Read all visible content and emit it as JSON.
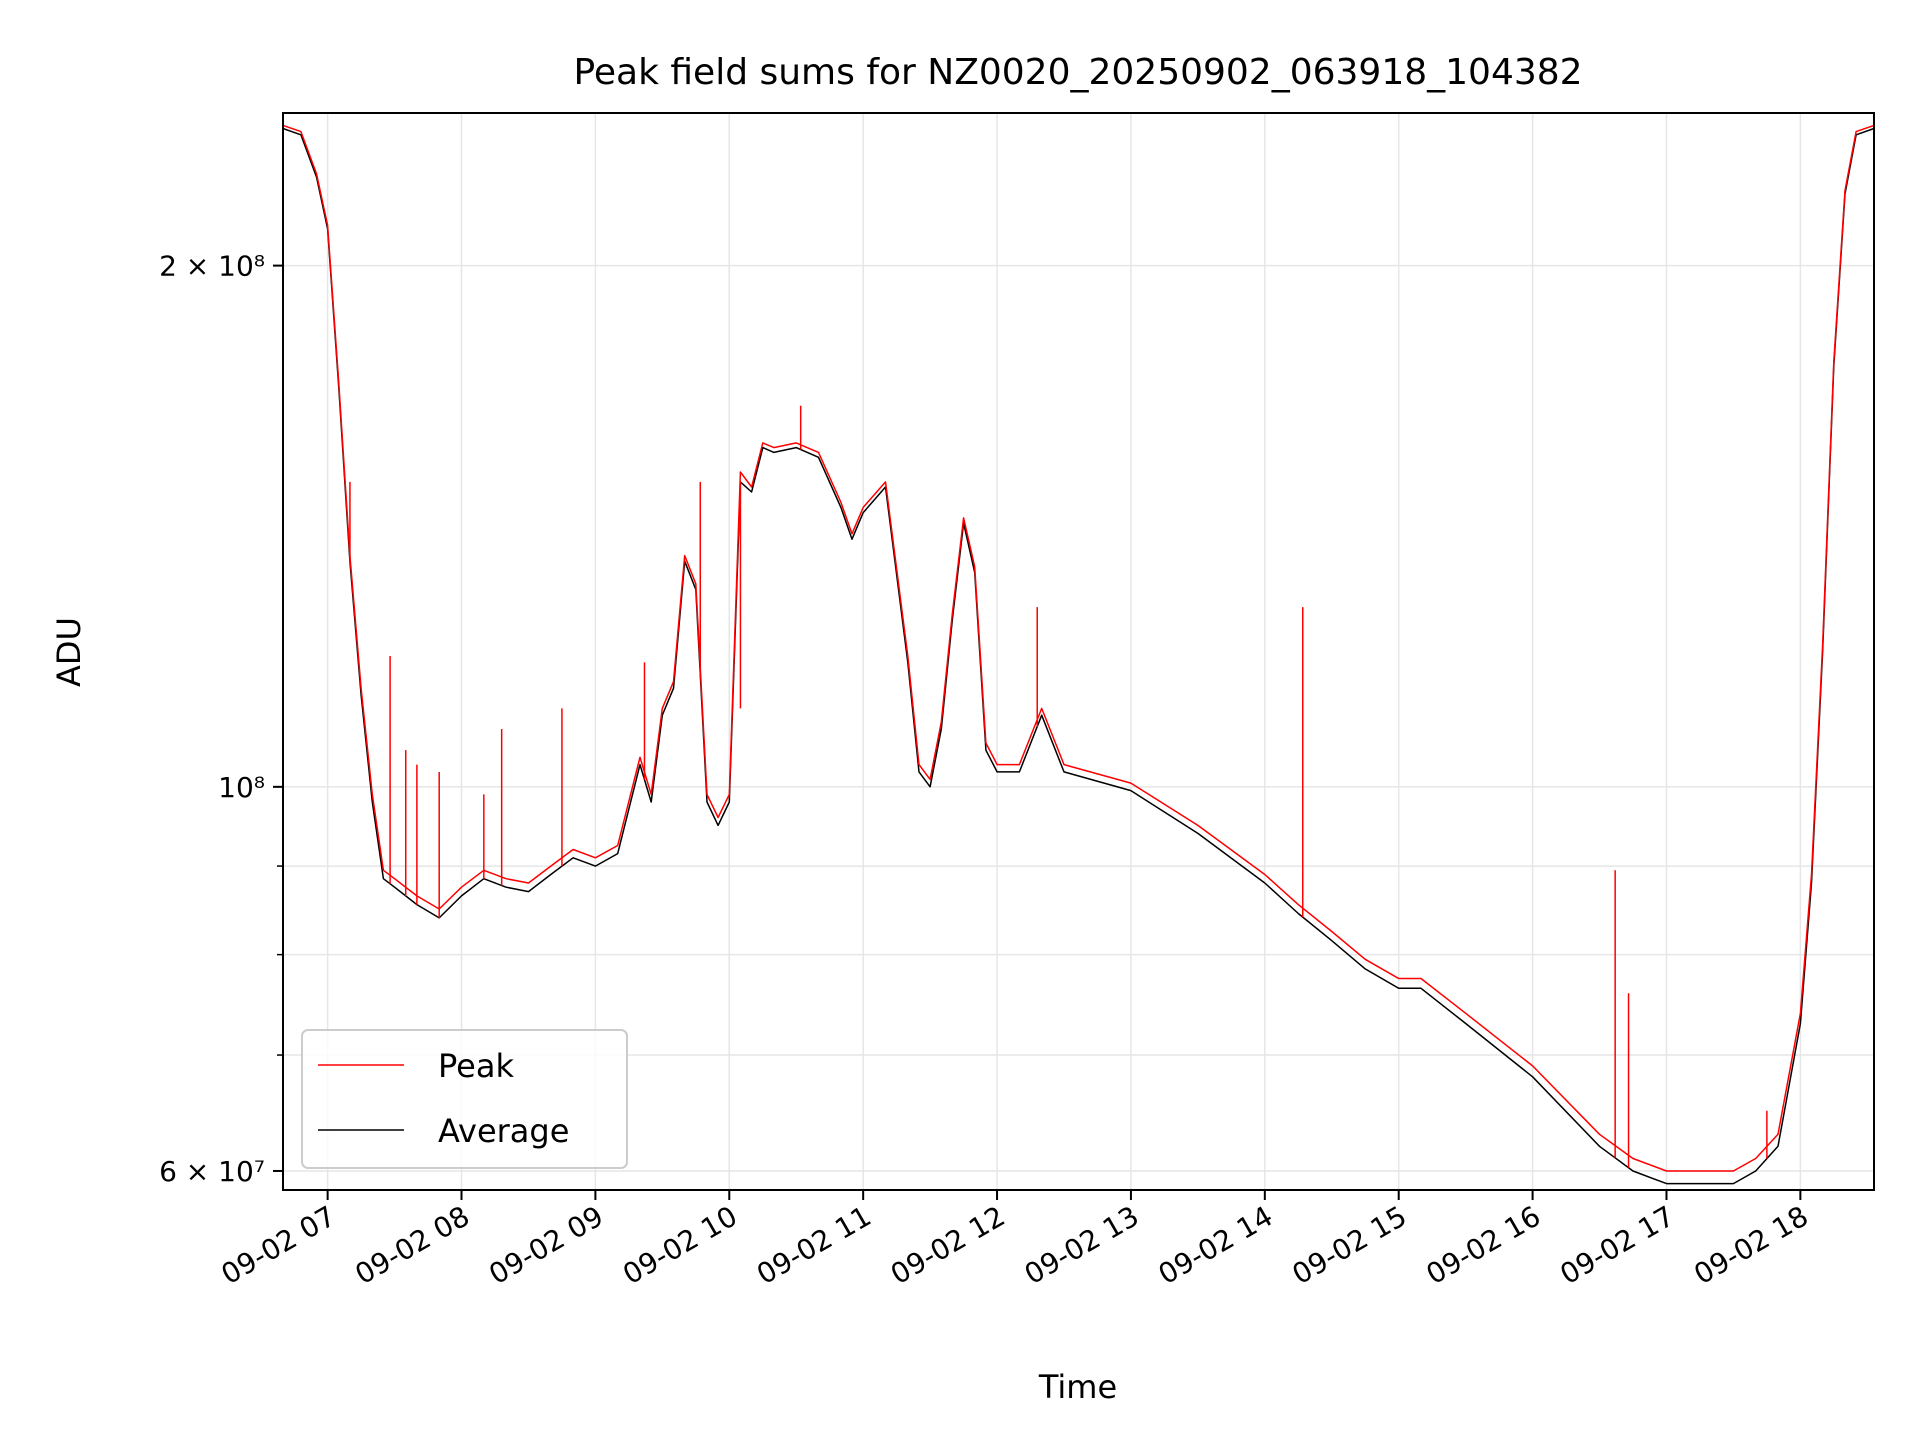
{
  "chart_data": {
    "type": "line",
    "title": "Peak field sums for NZ0020_20250902_063918_104382",
    "xlabel": "Time",
    "ylabel": "ADU",
    "y_scale": "log",
    "ylim": [
      58500000,
      245000000
    ],
    "xlim": [
      "2025-09-02 06:40",
      "2025-09-02 18:33"
    ],
    "grid": true,
    "legend_position": "lower-left",
    "x_ticks": [
      {
        "t": "2025-09-02 07:00",
        "label": "09-02 07"
      },
      {
        "t": "2025-09-02 08:00",
        "label": "09-02 08"
      },
      {
        "t": "2025-09-02 09:00",
        "label": "09-02 09"
      },
      {
        "t": "2025-09-02 10:00",
        "label": "09-02 10"
      },
      {
        "t": "2025-09-02 11:00",
        "label": "09-02 11"
      },
      {
        "t": "2025-09-02 12:00",
        "label": "09-02 12"
      },
      {
        "t": "2025-09-02 13:00",
        "label": "09-02 13"
      },
      {
        "t": "2025-09-02 14:00",
        "label": "09-02 14"
      },
      {
        "t": "2025-09-02 15:00",
        "label": "09-02 15"
      },
      {
        "t": "2025-09-02 16:00",
        "label": "09-02 16"
      },
      {
        "t": "2025-09-02 17:00",
        "label": "09-02 17"
      },
      {
        "t": "2025-09-02 18:00",
        "label": "09-02 18"
      }
    ],
    "y_ticks": [
      {
        "value": 60000000,
        "label": "6 × 10⁷"
      },
      {
        "value": 100000000,
        "label": "10⁸"
      },
      {
        "value": 200000000,
        "label": "2 × 10⁸"
      }
    ],
    "y_minor_ticks": [
      70000000,
      80000000,
      90000000
    ],
    "series": [
      {
        "name": "Average",
        "color": "#000000",
        "x": [
          "2025-09-02 06:40",
          "2025-09-02 06:48",
          "2025-09-02 06:55",
          "2025-09-02 07:00",
          "2025-09-02 07:05",
          "2025-09-02 07:10",
          "2025-09-02 07:15",
          "2025-09-02 07:20",
          "2025-09-02 07:25",
          "2025-09-02 07:30",
          "2025-09-02 07:40",
          "2025-09-02 07:50",
          "2025-09-02 08:00",
          "2025-09-02 08:10",
          "2025-09-02 08:20",
          "2025-09-02 08:30",
          "2025-09-02 08:40",
          "2025-09-02 08:50",
          "2025-09-02 09:00",
          "2025-09-02 09:10",
          "2025-09-02 09:20",
          "2025-09-02 09:25",
          "2025-09-02 09:30",
          "2025-09-02 09:35",
          "2025-09-02 09:40",
          "2025-09-02 09:45",
          "2025-09-02 09:50",
          "2025-09-02 09:55",
          "2025-09-02 10:00",
          "2025-09-02 10:05",
          "2025-09-02 10:10",
          "2025-09-02 10:15",
          "2025-09-02 10:20",
          "2025-09-02 10:30",
          "2025-09-02 10:40",
          "2025-09-02 10:50",
          "2025-09-02 10:55",
          "2025-09-02 11:00",
          "2025-09-02 11:10",
          "2025-09-02 11:20",
          "2025-09-02 11:25",
          "2025-09-02 11:30",
          "2025-09-02 11:35",
          "2025-09-02 11:40",
          "2025-09-02 11:45",
          "2025-09-02 11:50",
          "2025-09-02 11:55",
          "2025-09-02 12:00",
          "2025-09-02 12:10",
          "2025-09-02 12:20",
          "2025-09-02 12:30",
          "2025-09-02 13:00",
          "2025-09-02 13:30",
          "2025-09-02 14:00",
          "2025-09-02 14:15",
          "2025-09-02 14:30",
          "2025-09-02 14:45",
          "2025-09-02 15:00",
          "2025-09-02 15:10",
          "2025-09-02 15:30",
          "2025-09-02 16:00",
          "2025-09-02 16:30",
          "2025-09-02 16:45",
          "2025-09-02 17:00",
          "2025-09-02 17:30",
          "2025-09-02 17:40",
          "2025-09-02 17:50",
          "2025-09-02 18:00",
          "2025-09-02 18:05",
          "2025-09-02 18:10",
          "2025-09-02 18:15",
          "2025-09-02 18:20",
          "2025-09-02 18:25",
          "2025-09-02 18:33"
        ],
        "y": [
          240000000,
          238000000,
          225000000,
          210000000,
          170000000,
          135000000,
          113000000,
          98000000,
          88500000,
          87500000,
          85500000,
          84000000,
          86500000,
          88500000,
          87500000,
          87000000,
          89000000,
          91000000,
          90000000,
          91500000,
          103000000,
          98000000,
          110000000,
          114000000,
          135000000,
          130000000,
          98000000,
          95000000,
          98000000,
          150000000,
          148000000,
          157000000,
          156000000,
          157000000,
          155000000,
          145000000,
          139000000,
          144000000,
          149000000,
          118000000,
          102000000,
          100000000,
          108000000,
          125000000,
          142000000,
          133000000,
          105000000,
          102000000,
          102000000,
          110000000,
          102000000,
          99500000,
          94000000,
          88000000,
          84500000,
          81500000,
          78500000,
          76500000,
          76500000,
          73000000,
          68000000,
          62000000,
          60000000,
          59000000,
          59000000,
          60000000,
          62000000,
          73000000,
          88000000,
          120000000,
          175000000,
          220000000,
          238000000,
          240000000
        ]
      },
      {
        "name": "Peak",
        "color": "#ff0000",
        "x": [
          "2025-09-02 06:40",
          "2025-09-02 06:48",
          "2025-09-02 06:55",
          "2025-09-02 07:00",
          "2025-09-02 07:05",
          "2025-09-02 07:10",
          "2025-09-02 07:15",
          "2025-09-02 07:20",
          "2025-09-02 07:25",
          "2025-09-02 07:30",
          "2025-09-02 07:40",
          "2025-09-02 07:50",
          "2025-09-02 08:00",
          "2025-09-02 08:10",
          "2025-09-02 08:20",
          "2025-09-02 08:30",
          "2025-09-02 08:40",
          "2025-09-02 08:50",
          "2025-09-02 09:00",
          "2025-09-02 09:10",
          "2025-09-02 09:20",
          "2025-09-02 09:25",
          "2025-09-02 09:30",
          "2025-09-02 09:35",
          "2025-09-02 09:40",
          "2025-09-02 09:45",
          "2025-09-02 09:50",
          "2025-09-02 09:55",
          "2025-09-02 10:00",
          "2025-09-02 10:05",
          "2025-09-02 10:10",
          "2025-09-02 10:15",
          "2025-09-02 10:20",
          "2025-09-02 10:30",
          "2025-09-02 10:40",
          "2025-09-02 10:50",
          "2025-09-02 10:55",
          "2025-09-02 11:00",
          "2025-09-02 11:10",
          "2025-09-02 11:20",
          "2025-09-02 11:25",
          "2025-09-02 11:30",
          "2025-09-02 11:35",
          "2025-09-02 11:40",
          "2025-09-02 11:45",
          "2025-09-02 11:50",
          "2025-09-02 11:55",
          "2025-09-02 12:00",
          "2025-09-02 12:10",
          "2025-09-02 12:20",
          "2025-09-02 12:30",
          "2025-09-02 13:00",
          "2025-09-02 13:30",
          "2025-09-02 14:00",
          "2025-09-02 14:15",
          "2025-09-02 14:30",
          "2025-09-02 14:45",
          "2025-09-02 15:00",
          "2025-09-02 15:10",
          "2025-09-02 15:30",
          "2025-09-02 16:00",
          "2025-09-02 16:30",
          "2025-09-02 16:45",
          "2025-09-02 17:00",
          "2025-09-02 17:30",
          "2025-09-02 17:40",
          "2025-09-02 17:50",
          "2025-09-02 18:00",
          "2025-09-02 18:05",
          "2025-09-02 18:10",
          "2025-09-02 18:15",
          "2025-09-02 18:20",
          "2025-09-02 18:25",
          "2025-09-02 18:33"
        ],
        "y": [
          241000000,
          239000000,
          226000000,
          211000000,
          171000000,
          136000000,
          114000000,
          99000000,
          89500000,
          88500000,
          86500000,
          85000000,
          87500000,
          89500000,
          88500000,
          88000000,
          90000000,
          92000000,
          91000000,
          92500000,
          104000000,
          99000000,
          111000000,
          115000000,
          136000000,
          131000000,
          99000000,
          96000000,
          99000000,
          152000000,
          149000000,
          158000000,
          157000000,
          158000000,
          156000000,
          146000000,
          140000000,
          145000000,
          150000000,
          119000000,
          103000000,
          101000000,
          109000000,
          126000000,
          143000000,
          134000000,
          106000000,
          103000000,
          103000000,
          111000000,
          103000000,
          100500000,
          95000000,
          89000000,
          85500000,
          82500000,
          79500000,
          77500000,
          77500000,
          74000000,
          69000000,
          63000000,
          61000000,
          60000000,
          60000000,
          61000000,
          63000000,
          74000000,
          89000000,
          121000000,
          176000000,
          221000000,
          239000000,
          241000000
        ],
        "spikes": [
          {
            "x": "2025-09-02 07:10",
            "y": 150000000
          },
          {
            "x": "2025-09-02 07:28",
            "y": 119000000
          },
          {
            "x": "2025-09-02 07:35",
            "y": 105000000
          },
          {
            "x": "2025-09-02 07:40",
            "y": 103000000
          },
          {
            "x": "2025-09-02 07:50",
            "y": 102000000
          },
          {
            "x": "2025-09-02 08:10",
            "y": 99000000
          },
          {
            "x": "2025-09-02 08:18",
            "y": 108000000
          },
          {
            "x": "2025-09-02 08:45",
            "y": 111000000
          },
          {
            "x": "2025-09-02 09:22",
            "y": 118000000
          },
          {
            "x": "2025-09-02 09:47",
            "y": 150000000
          },
          {
            "x": "2025-09-02 10:05",
            "y": 111000000
          },
          {
            "x": "2025-09-02 10:32",
            "y": 166000000
          },
          {
            "x": "2025-09-02 12:18",
            "y": 127000000
          },
          {
            "x": "2025-09-02 14:17",
            "y": 127000000
          },
          {
            "x": "2025-09-02 16:37",
            "y": 89500000
          },
          {
            "x": "2025-09-02 16:43",
            "y": 76000000
          },
          {
            "x": "2025-09-02 17:45",
            "y": 65000000
          }
        ]
      }
    ]
  }
}
